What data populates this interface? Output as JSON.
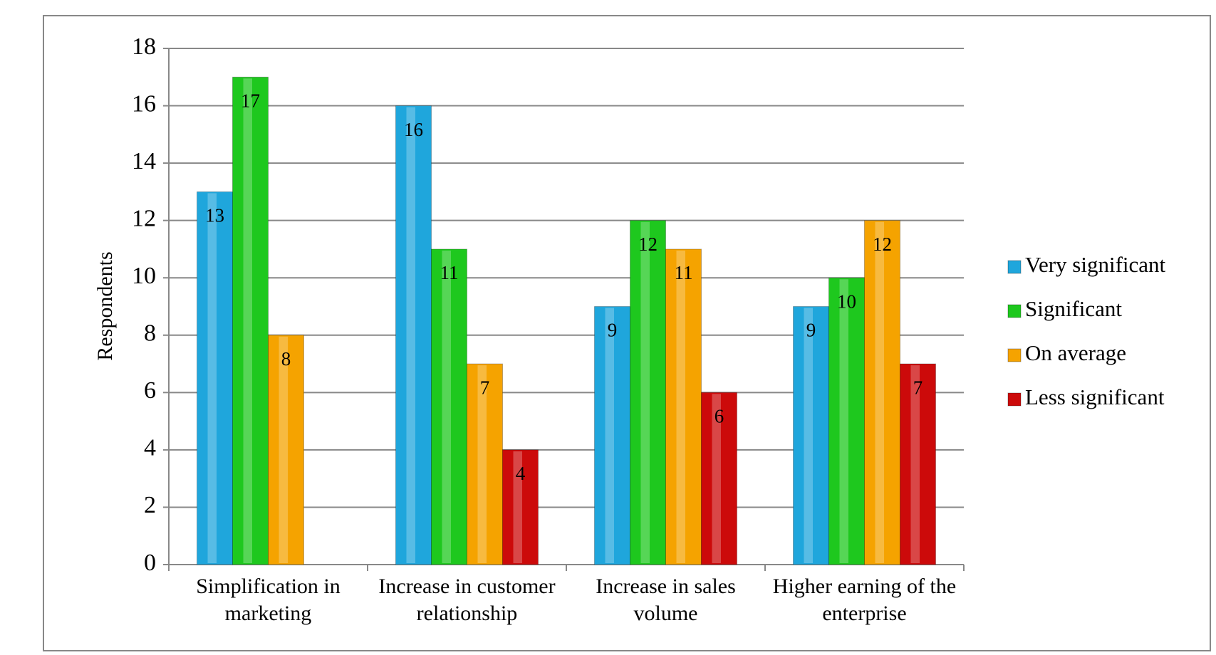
{
  "chart_data": {
    "type": "bar",
    "y_label": "Respondents",
    "categories": [
      "Simplification in marketing",
      "Increase in customer relationship",
      "Increase in sales volume",
      "Higher earning of the enterprise"
    ],
    "series": [
      {
        "name": "Very significant",
        "color": "#1fa6dc",
        "values": [
          13,
          16,
          9,
          9
        ]
      },
      {
        "name": "Significant",
        "color": "#1ec81e",
        "values": [
          17,
          11,
          12,
          10
        ]
      },
      {
        "name": "On average",
        "color": "#f5a300",
        "values": [
          8,
          7,
          11,
          12
        ]
      },
      {
        "name": "Less significant",
        "color": "#cc0a0a",
        "values": [
          null,
          4,
          6,
          7
        ]
      }
    ],
    "ylim": [
      0,
      18
    ],
    "yticks": [
      0,
      2,
      4,
      6,
      8,
      10,
      12,
      14,
      16,
      18
    ],
    "grid": true,
    "legend": "right"
  }
}
